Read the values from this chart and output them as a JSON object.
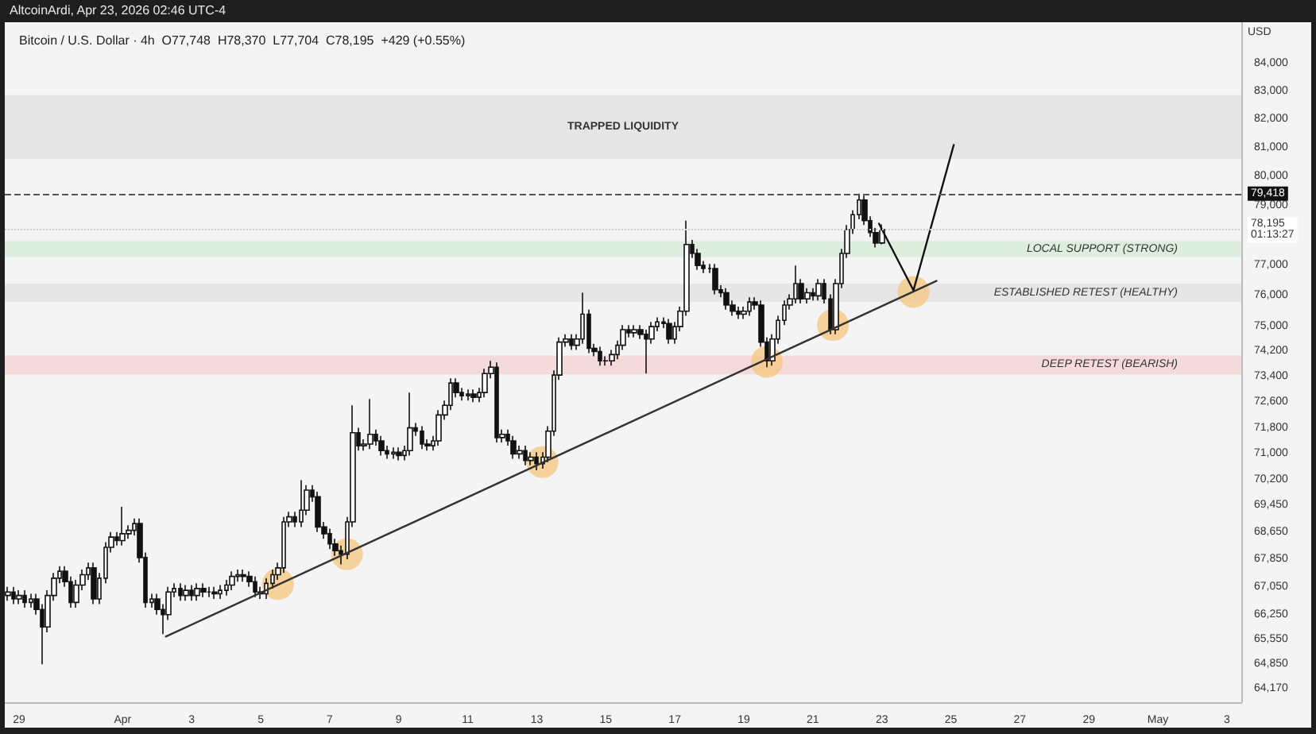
{
  "chart_data": {
    "type": "candlestick",
    "title": "Bitcoin / U.S. Dollar · 4h",
    "annotations": [
      "O77,748  H78,370  L77,704  C78,195  +429 (+0.55%)",
      "AltcoinArdi, Apr 23, 2026 02:46 UTC-4"
    ],
    "ylabel": "USD",
    "log": true,
    "x": [
      "2026-03-28T16:00",
      "2026-03-28T20:00",
      "2026-03-29T00:00",
      "2026-03-29T04:00",
      "2026-03-29T08:00",
      "2026-03-29T12:00",
      "2026-03-29T16:00",
      "2026-03-29T20:00",
      "2026-03-30T00:00",
      "2026-03-30T04:00",
      "2026-03-30T08:00",
      "2026-03-30T12:00",
      "2026-03-30T16:00",
      "2026-03-30T20:00",
      "2026-03-31T00:00",
      "2026-03-31T04:00",
      "2026-03-31T08:00",
      "2026-03-31T12:00",
      "2026-03-31T16:00",
      "2026-03-31T20:00",
      "2026-04-01T00:00",
      "2026-04-01T04:00",
      "2026-04-01T08:00",
      "2026-04-01T12:00",
      "2026-04-01T16:00",
      "2026-04-01T20:00",
      "2026-04-02T00:00",
      "2026-04-02T04:00",
      "2026-04-02T08:00",
      "2026-04-02T12:00",
      "2026-04-02T16:00",
      "2026-04-02T20:00",
      "2026-04-03T00:00",
      "2026-04-03T04:00",
      "2026-04-03T08:00",
      "2026-04-03T12:00",
      "2026-04-03T16:00",
      "2026-04-03T20:00",
      "2026-04-04T00:00",
      "2026-04-04T04:00",
      "2026-04-04T08:00",
      "2026-04-04T12:00",
      "2026-04-04T16:00",
      "2026-04-04T20:00",
      "2026-04-05T00:00",
      "2026-04-05T04:00",
      "2026-04-05T08:00",
      "2026-04-05T12:00",
      "2026-04-05T16:00",
      "2026-04-05T20:00",
      "2026-04-06T00:00",
      "2026-04-06T04:00",
      "2026-04-06T08:00",
      "2026-04-06T12:00",
      "2026-04-06T16:00",
      "2026-04-06T20:00",
      "2026-04-07T00:00",
      "2026-04-07T04:00",
      "2026-04-07T08:00",
      "2026-04-07T12:00",
      "2026-04-07T16:00",
      "2026-04-07T20:00",
      "2026-04-08T00:00",
      "2026-04-08T04:00",
      "2026-04-08T08:00",
      "2026-04-08T12:00",
      "2026-04-08T16:00",
      "2026-04-08T20:00",
      "2026-04-09T00:00",
      "2026-04-09T04:00",
      "2026-04-09T08:00",
      "2026-04-09T12:00",
      "2026-04-09T16:00",
      "2026-04-09T20:00",
      "2026-04-10T00:00",
      "2026-04-10T04:00",
      "2026-04-10T08:00",
      "2026-04-10T12:00",
      "2026-04-10T16:00",
      "2026-04-10T20:00",
      "2026-04-11T00:00",
      "2026-04-11T04:00",
      "2026-04-11T08:00",
      "2026-04-11T12:00",
      "2026-04-11T16:00",
      "2026-04-11T20:00",
      "2026-04-12T00:00",
      "2026-04-12T04:00",
      "2026-04-12T08:00",
      "2026-04-12T12:00",
      "2026-04-12T16:00",
      "2026-04-12T20:00",
      "2026-04-13T00:00",
      "2026-04-13T04:00",
      "2026-04-13T08:00",
      "2026-04-13T12:00",
      "2026-04-13T16:00",
      "2026-04-13T20:00",
      "2026-04-14T00:00",
      "2026-04-14T04:00",
      "2026-04-14T08:00",
      "2026-04-14T12:00",
      "2026-04-14T16:00",
      "2026-04-14T20:00",
      "2026-04-15T00:00",
      "2026-04-15T04:00",
      "2026-04-15T08:00",
      "2026-04-15T12:00",
      "2026-04-15T16:00",
      "2026-04-15T20:00",
      "2026-04-16T00:00",
      "2026-04-16T04:00",
      "2026-04-16T08:00",
      "2026-04-16T12:00",
      "2026-04-16T16:00",
      "2026-04-16T20:00",
      "2026-04-17T00:00",
      "2026-04-17T04:00",
      "2026-04-17T08:00",
      "2026-04-17T12:00",
      "2026-04-17T16:00",
      "2026-04-17T20:00",
      "2026-04-18T00:00",
      "2026-04-18T04:00",
      "2026-04-18T08:00",
      "2026-04-18T12:00",
      "2026-04-18T16:00",
      "2026-04-18T20:00",
      "2026-04-19T00:00",
      "2026-04-19T04:00",
      "2026-04-19T08:00",
      "2026-04-19T12:00",
      "2026-04-19T16:00",
      "2026-04-19T20:00",
      "2026-04-20T00:00",
      "2026-04-20T04:00",
      "2026-04-20T08:00",
      "2026-04-20T12:00",
      "2026-04-20T16:00",
      "2026-04-20T20:00",
      "2026-04-21T00:00",
      "2026-04-21T04:00",
      "2026-04-21T08:00",
      "2026-04-21T12:00",
      "2026-04-21T16:00",
      "2026-04-21T20:00",
      "2026-04-22T00:00",
      "2026-04-22T04:00",
      "2026-04-22T08:00",
      "2026-04-22T12:00",
      "2026-04-22T16:00",
      "2026-04-22T20:00",
      "2026-04-23T00:00"
    ],
    "ohlc": [
      [
        66800,
        67050,
        66650,
        66900
      ],
      [
        66900,
        67050,
        66550,
        66700
      ],
      [
        66700,
        66950,
        66550,
        66800
      ],
      [
        66800,
        66950,
        66450,
        66600
      ],
      [
        66600,
        66850,
        66450,
        66700
      ],
      [
        66700,
        66850,
        66250,
        66400
      ],
      [
        66400,
        66550,
        64850,
        65900
      ],
      [
        65900,
        66950,
        65750,
        66800
      ],
      [
        66800,
        67450,
        66650,
        67300
      ],
      [
        67300,
        67650,
        67150,
        67500
      ],
      [
        67500,
        67650,
        67050,
        67200
      ],
      [
        67200,
        67350,
        66450,
        66600
      ],
      [
        66600,
        67250,
        66450,
        67100
      ],
      [
        67100,
        67550,
        66950,
        67400
      ],
      [
        67400,
        67750,
        67250,
        67600
      ],
      [
        67600,
        67750,
        66550,
        66700
      ],
      [
        66700,
        67450,
        66550,
        67300
      ],
      [
        67300,
        68350,
        67150,
        68200
      ],
      [
        68200,
        68650,
        68050,
        68500
      ],
      [
        68500,
        68650,
        68250,
        68400
      ],
      [
        68400,
        69400,
        68250,
        68600
      ],
      [
        68600,
        68850,
        68450,
        68700
      ],
      [
        68700,
        69050,
        68550,
        68900
      ],
      [
        68900,
        69050,
        67750,
        67900
      ],
      [
        67900,
        68050,
        66450,
        66600
      ],
      [
        66600,
        66850,
        66450,
        66700
      ],
      [
        66700,
        66850,
        66250,
        66400
      ],
      [
        66400,
        66550,
        65700,
        66250
      ],
      [
        66250,
        67050,
        66100,
        66900
      ],
      [
        66900,
        67150,
        66750,
        67000
      ],
      [
        67000,
        67150,
        66650,
        66800
      ],
      [
        66800,
        67100,
        66650,
        66950
      ],
      [
        66950,
        67100,
        66650,
        66800
      ],
      [
        66800,
        67150,
        66650,
        67000
      ],
      [
        67000,
        67150,
        66750,
        66900
      ],
      [
        66900,
        67050,
        66750,
        66900
      ],
      [
        66900,
        67050,
        66700,
        66850
      ],
      [
        66850,
        67100,
        66700,
        66950
      ],
      [
        66950,
        67250,
        66800,
        67100
      ],
      [
        67100,
        67500,
        66950,
        67350
      ],
      [
        67350,
        67550,
        67200,
        67400
      ],
      [
        67400,
        67550,
        67200,
        67350
      ],
      [
        67350,
        67500,
        67050,
        67200
      ],
      [
        67200,
        67350,
        66750,
        66900
      ],
      [
        66900,
        67050,
        66700,
        66850
      ],
      [
        66850,
        67300,
        66700,
        67150
      ],
      [
        67150,
        67550,
        67000,
        67400
      ],
      [
        67400,
        67750,
        67250,
        67600
      ],
      [
        67600,
        69100,
        67450,
        68950
      ],
      [
        68950,
        69250,
        68800,
        69100
      ],
      [
        69100,
        69250,
        68800,
        68950
      ],
      [
        68950,
        70200,
        68800,
        69300
      ],
      [
        69300,
        70050,
        69150,
        69900
      ],
      [
        69900,
        70050,
        69550,
        69700
      ],
      [
        69700,
        69850,
        68650,
        68800
      ],
      [
        68800,
        68950,
        68450,
        68600
      ],
      [
        68600,
        68750,
        68150,
        68300
      ],
      [
        68300,
        68450,
        67950,
        68100
      ],
      [
        68100,
        68250,
        67700,
        68000
      ],
      [
        68000,
        69100,
        67850,
        68950
      ],
      [
        68950,
        72500,
        68800,
        71650
      ],
      [
        71650,
        71800,
        71100,
        71250
      ],
      [
        71250,
        71450,
        71100,
        71300
      ],
      [
        71300,
        72700,
        71150,
        71600
      ],
      [
        71600,
        71750,
        71250,
        71400
      ],
      [
        71400,
        71550,
        70950,
        71100
      ],
      [
        71100,
        71250,
        70850,
        71000
      ],
      [
        71000,
        71200,
        70850,
        71050
      ],
      [
        71050,
        71200,
        70800,
        70950
      ],
      [
        70950,
        71250,
        70800,
        71100
      ],
      [
        71100,
        72900,
        70950,
        71800
      ],
      [
        71800,
        71950,
        71550,
        71700
      ],
      [
        71700,
        71850,
        71150,
        71300
      ],
      [
        71300,
        71450,
        71100,
        71250
      ],
      [
        71250,
        71550,
        71100,
        71400
      ],
      [
        71400,
        72350,
        71250,
        72200
      ],
      [
        72200,
        72650,
        72050,
        72500
      ],
      [
        72500,
        73350,
        72350,
        73200
      ],
      [
        73200,
        73350,
        72750,
        72900
      ],
      [
        72900,
        73050,
        72650,
        72800
      ],
      [
        72800,
        73000,
        72650,
        72850
      ],
      [
        72850,
        73000,
        72600,
        72750
      ],
      [
        72750,
        73050,
        72600,
        72900
      ],
      [
        72900,
        73650,
        72750,
        73500
      ],
      [
        73500,
        73900,
        73350,
        73700
      ],
      [
        73700,
        73850,
        71350,
        71500
      ],
      [
        71500,
        71750,
        71350,
        71600
      ],
      [
        71600,
        71750,
        71250,
        71400
      ],
      [
        71400,
        71550,
        70850,
        71000
      ],
      [
        71000,
        71250,
        70850,
        71100
      ],
      [
        71100,
        71250,
        70650,
        70800
      ],
      [
        70800,
        71050,
        70650,
        70900
      ],
      [
        70900,
        71050,
        70500,
        70700
      ],
      [
        70700,
        71050,
        70550,
        70900
      ],
      [
        70900,
        71850,
        70750,
        71700
      ],
      [
        71700,
        73600,
        71550,
        73450
      ],
      [
        73450,
        74650,
        73300,
        74500
      ],
      [
        74500,
        74750,
        74350,
        74600
      ],
      [
        74600,
        74750,
        74250,
        74400
      ],
      [
        74400,
        74750,
        74250,
        74600
      ],
      [
        74600,
        76100,
        74450,
        75400
      ],
      [
        75400,
        75550,
        74150,
        74300
      ],
      [
        74300,
        74450,
        74050,
        74200
      ],
      [
        74200,
        74350,
        73750,
        73900
      ],
      [
        73900,
        74050,
        73750,
        73900
      ],
      [
        73900,
        74250,
        73750,
        74100
      ],
      [
        74100,
        74550,
        73950,
        74400
      ],
      [
        74400,
        75050,
        74250,
        74900
      ],
      [
        74900,
        75050,
        74650,
        74800
      ],
      [
        74800,
        75050,
        74650,
        74900
      ],
      [
        74900,
        75050,
        74600,
        74750
      ],
      [
        74750,
        74900,
        73500,
        74600
      ],
      [
        74600,
        75150,
        74450,
        75000
      ],
      [
        75000,
        75300,
        74850,
        75150
      ],
      [
        75150,
        75300,
        74950,
        75100
      ],
      [
        75100,
        75250,
        74450,
        74600
      ],
      [
        74600,
        75150,
        74450,
        75000
      ],
      [
        75000,
        75650,
        74850,
        75500
      ],
      [
        75500,
        78500,
        75350,
        77700
      ],
      [
        77700,
        77850,
        77250,
        77400
      ],
      [
        77400,
        77550,
        76850,
        77000
      ],
      [
        77000,
        77150,
        76750,
        76900
      ],
      [
        76900,
        77050,
        76750,
        76900
      ],
      [
        76900,
        77050,
        76050,
        76200
      ],
      [
        76200,
        76350,
        75950,
        76100
      ],
      [
        76100,
        76250,
        75550,
        75700
      ],
      [
        75700,
        75850,
        75350,
        75500
      ],
      [
        75500,
        75650,
        75250,
        75400
      ],
      [
        75400,
        75650,
        75250,
        75500
      ],
      [
        75500,
        75950,
        75350,
        75800
      ],
      [
        75800,
        75950,
        75550,
        75700
      ],
      [
        75700,
        75850,
        74350,
        74500
      ],
      [
        74500,
        74650,
        73700,
        73900
      ],
      [
        73900,
        74750,
        73750,
        74600
      ],
      [
        74600,
        75350,
        74450,
        75200
      ],
      [
        75200,
        75850,
        75050,
        75700
      ],
      [
        75700,
        76050,
        75550,
        75900
      ],
      [
        75900,
        77000,
        75750,
        76400
      ],
      [
        76400,
        76550,
        75750,
        75900
      ],
      [
        75900,
        76250,
        75750,
        76100
      ],
      [
        76100,
        76250,
        75850,
        76000
      ],
      [
        76000,
        76550,
        75850,
        76400
      ],
      [
        76400,
        76550,
        75750,
        75900
      ],
      [
        75900,
        76050,
        74750,
        74900
      ],
      [
        74900,
        76550,
        74750,
        76400
      ],
      [
        76400,
        77550,
        76250,
        77400
      ],
      [
        77400,
        78350,
        77250,
        78200
      ],
      [
        78200,
        78850,
        78050,
        78700
      ],
      [
        78700,
        79418,
        78550,
        79200
      ],
      [
        79200,
        79350,
        78350,
        78500
      ],
      [
        78500,
        78650,
        77950,
        78100
      ],
      [
        78100,
        78250,
        77600,
        77748
      ],
      [
        77748,
        78370,
        77704,
        78195
      ]
    ],
    "series": [
      {
        "type": "line",
        "color": "#333333",
        "marker": "none",
        "line_style": "solid",
        "x": [
          "2026-04-02T06:00",
          "2026-04-24T14:00"
        ],
        "values": [
          65630,
          76490
        ]
      },
      {
        "type": "line",
        "color": "#111111",
        "marker": "none",
        "line_style": "solid",
        "x": [
          "2026-04-22T22:00",
          "2026-04-23T22:00",
          "2026-04-25T02:00"
        ],
        "values": [
          78400,
          76180,
          81100
        ]
      },
      {
        "type": "scatter",
        "color": "#f5c67f",
        "marker": "circle",
        "x": [
          "2026-04-05T12:00",
          "2026-04-07T12:00",
          "2026-04-13T04:00",
          "2026-04-19T16:00",
          "2026-04-21T14:00",
          "2026-04-23T22:00"
        ],
        "values": [
          67130,
          68000,
          70750,
          73870,
          75050,
          76130
        ]
      }
    ],
    "bands": [
      {
        "axis": "y",
        "from": 80620,
        "to": 82860,
        "label": "TRAPPED LIQUIDITY",
        "color": "#e2e2e2"
      },
      {
        "axis": "y",
        "from": 77280,
        "to": 77810,
        "label": "LOCAL SUPPORT (STRONG)",
        "color": "#d9ecd9"
      },
      {
        "axis": "y",
        "from": 75800,
        "to": 76400,
        "label": "ESTABLISHED RETEST (HEALTHY)",
        "color": "#e3e3e3"
      },
      {
        "axis": "y",
        "from": 73470,
        "to": 74070,
        "label": "DEEP RETEST (BEARISH)",
        "color": "#f5d5d7"
      }
    ],
    "ref_lines": [
      {
        "axis": "y",
        "value": 79418,
        "label": "79,418",
        "color": "#555555",
        "line_style": "dashed"
      },
      {
        "axis": "y",
        "value": 78195,
        "label": "78,195\n01:13:27",
        "color": "#cccccc",
        "line_style": "dotted"
      }
    ],
    "xlim": [
      "2026-03-28T14:00",
      "2026-05-03T10:00"
    ],
    "xticks": [
      {
        "value": "2026-03-29",
        "label": "29"
      },
      {
        "value": "2026-04-01",
        "label": "Apr"
      },
      {
        "value": "2026-04-03",
        "label": "3"
      },
      {
        "value": "2026-04-05",
        "label": "5"
      },
      {
        "value": "2026-04-07",
        "label": "7"
      },
      {
        "value": "2026-04-09",
        "label": "9"
      },
      {
        "value": "2026-04-11",
        "label": "11"
      },
      {
        "value": "2026-04-13",
        "label": "13"
      },
      {
        "value": "2026-04-15",
        "label": "15"
      },
      {
        "value": "2026-04-17",
        "label": "17"
      },
      {
        "value": "2026-04-19",
        "label": "19"
      },
      {
        "value": "2026-04-21",
        "label": "21"
      },
      {
        "value": "2026-04-23",
        "label": "23"
      },
      {
        "value": "2026-04-25",
        "label": "25"
      },
      {
        "value": "2026-04-27",
        "label": "27"
      },
      {
        "value": "2026-04-29",
        "label": "29"
      },
      {
        "value": "2026-05-01",
        "label": "May"
      },
      {
        "value": "2026-05-03",
        "label": "3"
      }
    ],
    "ylim": [
      63800,
      85500
    ],
    "yticks": [
      {
        "value": 84000,
        "label": "84,000"
      },
      {
        "value": 83000,
        "label": "83,000"
      },
      {
        "value": 82000,
        "label": "82,000"
      },
      {
        "value": 81000,
        "label": "81,000"
      },
      {
        "value": 80000,
        "label": "80,000"
      },
      {
        "value": 79000,
        "label": "79,000"
      },
      {
        "value": 77000,
        "label": "77,000"
      },
      {
        "value": 76000,
        "label": "76,000"
      },
      {
        "value": 75000,
        "label": "75,000"
      },
      {
        "value": 74200,
        "label": "74,200"
      },
      {
        "value": 73400,
        "label": "73,400"
      },
      {
        "value": 72600,
        "label": "72,600"
      },
      {
        "value": 71800,
        "label": "71,800"
      },
      {
        "value": 71000,
        "label": "71,000"
      },
      {
        "value": 70200,
        "label": "70,200"
      },
      {
        "value": 69450,
        "label": "69,450"
      },
      {
        "value": 68650,
        "label": "68,650"
      },
      {
        "value": 67850,
        "label": "67,850"
      },
      {
        "value": 67050,
        "label": "67,050"
      },
      {
        "value": 66250,
        "label": "66,250"
      },
      {
        "value": 65550,
        "label": "65,550"
      },
      {
        "value": 64850,
        "label": "64,850"
      },
      {
        "value": 64170,
        "label": "64,170"
      }
    ]
  }
}
